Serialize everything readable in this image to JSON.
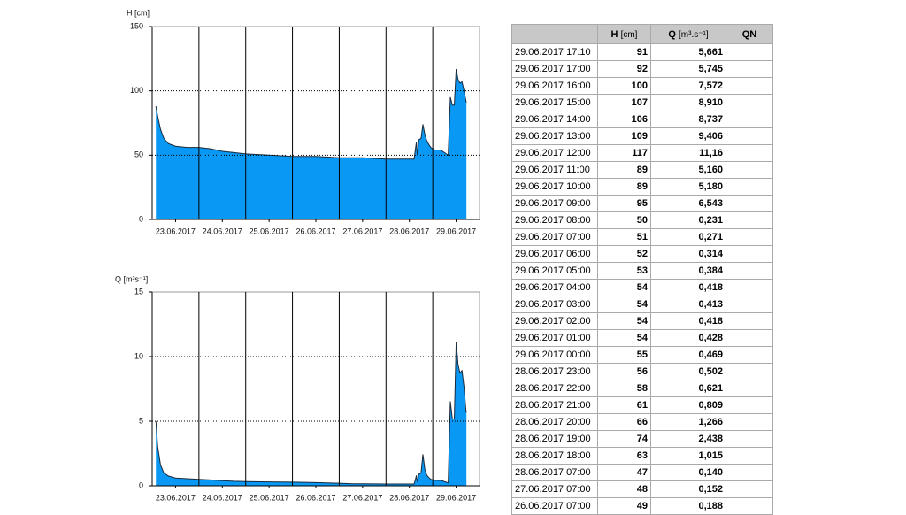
{
  "chart_data": [
    {
      "type": "area",
      "y_label": "H [cm]",
      "color": "#0a98f5",
      "line_color": "#1a2a3a",
      "xlim": [
        0,
        7
      ],
      "ylim": [
        0,
        150
      ],
      "yticks": [
        0,
        50,
        100,
        150
      ],
      "grid": true,
      "xticks": [
        {
          "value": 0.5,
          "label": "23.06.2017"
        },
        {
          "value": 1.5,
          "label": "24.06.2017"
        },
        {
          "value": 2.5,
          "label": "25.06.2017"
        },
        {
          "value": 3.5,
          "label": "26.06.2017"
        },
        {
          "value": 4.5,
          "label": "27.06.2017"
        },
        {
          "value": 5.5,
          "label": "28.06.2017"
        },
        {
          "value": 6.5,
          "label": "29.06.2017"
        }
      ],
      "x": [
        0.08,
        0.12,
        0.18,
        0.25,
        0.35,
        0.5,
        0.75,
        1.0,
        1.25,
        1.5,
        1.75,
        2.0,
        2.5,
        3.0,
        3.5,
        4.0,
        4.29,
        4.5,
        5.0,
        5.29,
        5.6,
        5.63,
        5.65,
        5.67,
        5.7,
        5.75,
        5.79,
        5.83,
        5.875,
        5.92,
        5.96,
        6.0,
        6.04,
        6.08,
        6.125,
        6.17,
        6.21,
        6.25,
        6.29,
        6.33,
        6.375,
        6.42,
        6.46,
        6.5,
        6.54,
        6.58,
        6.625,
        6.67,
        6.71,
        6.72
      ],
      "values": [
        88,
        80,
        70,
        63,
        59,
        57,
        56,
        56,
        55,
        53,
        52,
        51,
        50,
        49,
        49,
        48,
        48,
        48,
        47,
        47,
        47,
        55,
        60,
        50,
        62,
        63,
        74,
        66,
        61,
        58,
        56,
        55,
        54,
        54,
        54,
        54,
        53,
        52,
        51,
        50,
        95,
        89,
        89,
        117,
        109,
        106,
        107,
        100,
        92,
        91
      ]
    },
    {
      "type": "area",
      "y_label": "Q [m³s⁻¹]",
      "color": "#0a98f5",
      "line_color": "#1a2a3a",
      "xlim": [
        0,
        7
      ],
      "ylim": [
        0,
        15
      ],
      "yticks": [
        0,
        5,
        10,
        15
      ],
      "grid": true,
      "xticks": [
        {
          "value": 0.5,
          "label": "23.06.2017"
        },
        {
          "value": 1.5,
          "label": "24.06.2017"
        },
        {
          "value": 2.5,
          "label": "25.06.2017"
        },
        {
          "value": 3.5,
          "label": "26.06.2017"
        },
        {
          "value": 4.5,
          "label": "27.06.2017"
        },
        {
          "value": 5.5,
          "label": "28.06.2017"
        },
        {
          "value": 6.5,
          "label": "29.06.2017"
        }
      ],
      "x": [
        0.08,
        0.12,
        0.18,
        0.25,
        0.35,
        0.5,
        0.75,
        1.0,
        1.25,
        1.5,
        1.75,
        2.0,
        2.5,
        3.0,
        3.5,
        4.0,
        4.29,
        4.5,
        5.0,
        5.29,
        5.6,
        5.63,
        5.65,
        5.67,
        5.7,
        5.75,
        5.79,
        5.83,
        5.875,
        5.92,
        5.96,
        6.0,
        6.04,
        6.08,
        6.125,
        6.17,
        6.21,
        6.25,
        6.29,
        6.33,
        6.375,
        6.42,
        6.46,
        6.5,
        6.54,
        6.58,
        6.625,
        6.67,
        6.71,
        6.72
      ],
      "values": [
        5.0,
        3.0,
        1.6,
        1.0,
        0.75,
        0.6,
        0.55,
        0.5,
        0.45,
        0.4,
        0.35,
        0.32,
        0.3,
        0.28,
        0.25,
        0.2,
        0.152,
        0.15,
        0.14,
        0.14,
        0.14,
        0.5,
        0.8,
        0.3,
        0.9,
        1.015,
        2.438,
        1.266,
        0.809,
        0.621,
        0.502,
        0.469,
        0.428,
        0.418,
        0.413,
        0.418,
        0.384,
        0.314,
        0.271,
        0.231,
        6.543,
        5.18,
        5.16,
        11.16,
        9.406,
        8.737,
        8.91,
        7.572,
        5.745,
        5.661
      ]
    }
  ],
  "table": {
    "headers": [
      {
        "symbol": "H",
        "unit": "[cm]"
      },
      {
        "symbol": "Q",
        "unit": "[m³.s⁻¹]"
      },
      {
        "symbol": "QN"
      }
    ],
    "rows": [
      [
        "29.06.2017 17:10",
        "91",
        "5,661"
      ],
      [
        "29.06.2017 17:00",
        "92",
        "5,745"
      ],
      [
        "29.06.2017 16:00",
        "100",
        "7,572"
      ],
      [
        "29.06.2017 15:00",
        "107",
        "8,910"
      ],
      [
        "29.06.2017 14:00",
        "106",
        "8,737"
      ],
      [
        "29.06.2017 13:00",
        "109",
        "9,406"
      ],
      [
        "29.06.2017 12:00",
        "117",
        "11,16"
      ],
      [
        "29.06.2017 11:00",
        "89",
        "5,160"
      ],
      [
        "29.06.2017 10:00",
        "89",
        "5,180"
      ],
      [
        "29.06.2017 09:00",
        "95",
        "6,543"
      ],
      [
        "29.06.2017 08:00",
        "50",
        "0,231"
      ],
      [
        "29.06.2017 07:00",
        "51",
        "0,271"
      ],
      [
        "29.06.2017 06:00",
        "52",
        "0,314"
      ],
      [
        "29.06.2017 05:00",
        "53",
        "0,384"
      ],
      [
        "29.06.2017 04:00",
        "54",
        "0,418"
      ],
      [
        "29.06.2017 03:00",
        "54",
        "0,413"
      ],
      [
        "29.06.2017 02:00",
        "54",
        "0,418"
      ],
      [
        "29.06.2017 01:00",
        "54",
        "0,428"
      ],
      [
        "29.06.2017 00:00",
        "55",
        "0,469"
      ],
      [
        "28.06.2017 23:00",
        "56",
        "0,502"
      ],
      [
        "28.06.2017 22:00",
        "58",
        "0,621"
      ],
      [
        "28.06.2017 21:00",
        "61",
        "0,809"
      ],
      [
        "28.06.2017 20:00",
        "66",
        "1,266"
      ],
      [
        "28.06.2017 19:00",
        "74",
        "2,438"
      ],
      [
        "28.06.2017 18:00",
        "63",
        "1,015"
      ],
      [
        "28.06.2017 07:00",
        "47",
        "0,140"
      ],
      [
        "27.06.2017 07:00",
        "48",
        "0,152"
      ],
      [
        "26.06.2017 07:00",
        "49",
        "0,188"
      ]
    ]
  }
}
